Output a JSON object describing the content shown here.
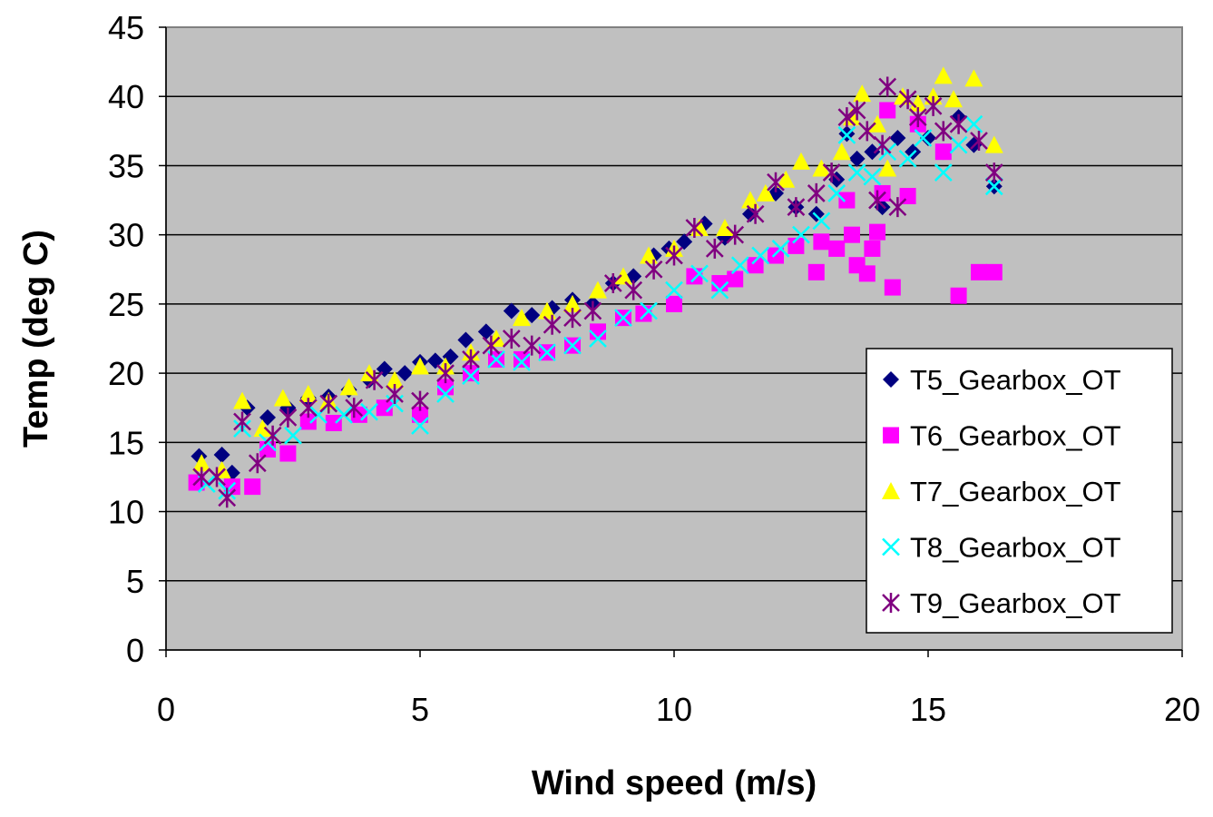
{
  "chart_data": {
    "type": "scatter",
    "title": "",
    "xlabel": "Wind speed (m/s)",
    "ylabel": "Temp (deg C)",
    "xlim": [
      0,
      20
    ],
    "ylim": [
      0,
      45
    ],
    "x_ticks": [
      0,
      5,
      10,
      15,
      20
    ],
    "y_ticks": [
      0,
      5,
      10,
      15,
      20,
      25,
      30,
      35,
      40,
      45
    ],
    "grid": "horizontal",
    "plot_background": "#C0C0C0",
    "legend_position": "right inside plot",
    "series": [
      {
        "name": "T5_Gearbox_OT",
        "color": "#000080",
        "marker": "diamond",
        "points": [
          [
            0.65,
            14.0
          ],
          [
            1.1,
            14.1
          ],
          [
            1.3,
            12.8
          ],
          [
            1.6,
            17.5
          ],
          [
            2.0,
            16.8
          ],
          [
            2.4,
            17.5
          ],
          [
            2.8,
            18.2
          ],
          [
            3.2,
            18.3
          ],
          [
            3.6,
            18.8
          ],
          [
            4.0,
            19.5
          ],
          [
            4.3,
            20.3
          ],
          [
            4.7,
            20.0
          ],
          [
            5.0,
            20.8
          ],
          [
            5.3,
            20.9
          ],
          [
            5.6,
            21.2
          ],
          [
            5.9,
            22.4
          ],
          [
            6.3,
            23.0
          ],
          [
            6.8,
            24.5
          ],
          [
            7.2,
            24.2
          ],
          [
            7.6,
            24.7
          ],
          [
            8.0,
            25.3
          ],
          [
            8.4,
            25.0
          ],
          [
            8.8,
            26.5
          ],
          [
            9.2,
            27.0
          ],
          [
            9.6,
            28.5
          ],
          [
            9.9,
            29.0
          ],
          [
            10.2,
            29.5
          ],
          [
            10.6,
            30.8
          ],
          [
            11.0,
            29.8
          ],
          [
            11.5,
            31.5
          ],
          [
            12.0,
            33.0
          ],
          [
            12.4,
            32.0
          ],
          [
            12.8,
            31.5
          ],
          [
            13.2,
            34.0
          ],
          [
            13.4,
            37.3
          ],
          [
            13.6,
            35.5
          ],
          [
            13.9,
            36.0
          ],
          [
            14.1,
            32.0
          ],
          [
            14.4,
            37.0
          ],
          [
            14.7,
            36.0
          ],
          [
            15.0,
            37.0
          ],
          [
            15.3,
            36.0
          ],
          [
            15.6,
            38.5
          ],
          [
            15.9,
            36.5
          ],
          [
            16.3,
            33.5
          ]
        ]
      },
      {
        "name": "T6_Gearbox_OT",
        "color": "#FF00FF",
        "marker": "square",
        "points": [
          [
            0.6,
            12.1
          ],
          [
            1.3,
            11.8
          ],
          [
            1.7,
            11.8
          ],
          [
            2.0,
            14.5
          ],
          [
            2.4,
            14.2
          ],
          [
            2.8,
            16.5
          ],
          [
            3.3,
            16.4
          ],
          [
            3.8,
            17.0
          ],
          [
            4.3,
            17.5
          ],
          [
            5.0,
            17.0
          ],
          [
            5.5,
            19.0
          ],
          [
            6.0,
            20.0
          ],
          [
            6.5,
            21.0
          ],
          [
            7.0,
            21.0
          ],
          [
            7.5,
            21.5
          ],
          [
            8.0,
            22.0
          ],
          [
            8.5,
            23.0
          ],
          [
            9.0,
            24.0
          ],
          [
            9.4,
            24.3
          ],
          [
            10.0,
            25.0
          ],
          [
            10.4,
            27.0
          ],
          [
            10.9,
            26.5
          ],
          [
            11.2,
            26.8
          ],
          [
            11.6,
            27.8
          ],
          [
            12.0,
            28.5
          ],
          [
            12.4,
            29.2
          ],
          [
            12.8,
            27.3
          ],
          [
            12.9,
            29.5
          ],
          [
            13.2,
            29.0
          ],
          [
            13.4,
            32.5
          ],
          [
            13.5,
            30.0
          ],
          [
            13.6,
            27.8
          ],
          [
            13.8,
            27.2
          ],
          [
            13.9,
            29.0
          ],
          [
            14.0,
            30.2
          ],
          [
            14.1,
            33.0
          ],
          [
            14.2,
            39.0
          ],
          [
            14.3,
            26.2
          ],
          [
            14.6,
            32.8
          ],
          [
            14.8,
            38.0
          ],
          [
            15.3,
            36.0
          ],
          [
            15.6,
            25.6
          ],
          [
            16.0,
            27.3
          ],
          [
            16.3,
            27.3
          ]
        ]
      },
      {
        "name": "T7_Gearbox_OT",
        "color": "#FFFF00",
        "marker": "triangle",
        "points": [
          [
            0.7,
            13.5
          ],
          [
            1.1,
            13.0
          ],
          [
            1.5,
            18.0
          ],
          [
            1.9,
            16.0
          ],
          [
            2.3,
            18.2
          ],
          [
            2.8,
            18.5
          ],
          [
            3.2,
            18.0
          ],
          [
            3.6,
            19.0
          ],
          [
            4.0,
            20.0
          ],
          [
            4.5,
            19.5
          ],
          [
            5.0,
            20.5
          ],
          [
            5.5,
            20.5
          ],
          [
            6.0,
            21.5
          ],
          [
            6.5,
            22.5
          ],
          [
            7.0,
            24.0
          ],
          [
            7.5,
            24.5
          ],
          [
            8.0,
            25.0
          ],
          [
            8.5,
            26.0
          ],
          [
            9.0,
            27.0
          ],
          [
            9.5,
            28.5
          ],
          [
            10.0,
            29.0
          ],
          [
            10.5,
            30.5
          ],
          [
            11.0,
            30.5
          ],
          [
            11.5,
            32.5
          ],
          [
            11.8,
            33.0
          ],
          [
            12.2,
            34.0
          ],
          [
            12.5,
            35.3
          ],
          [
            12.9,
            34.8
          ],
          [
            13.3,
            36.0
          ],
          [
            13.5,
            38.5
          ],
          [
            13.7,
            40.2
          ],
          [
            14.0,
            38.0
          ],
          [
            14.2,
            34.8
          ],
          [
            14.5,
            40.0
          ],
          [
            14.8,
            39.5
          ],
          [
            15.1,
            40.0
          ],
          [
            15.3,
            41.5
          ],
          [
            15.5,
            39.8
          ],
          [
            15.9,
            41.3
          ],
          [
            16.3,
            36.5
          ]
        ]
      },
      {
        "name": "T8_Gearbox_OT",
        "color": "#00FFFF",
        "marker": "x",
        "points": [
          [
            0.8,
            12.0
          ],
          [
            1.2,
            11.5
          ],
          [
            1.5,
            16.0
          ],
          [
            2.0,
            15.0
          ],
          [
            2.5,
            15.5
          ],
          [
            3.0,
            17.0
          ],
          [
            3.5,
            17.0
          ],
          [
            4.0,
            17.2
          ],
          [
            4.5,
            17.8
          ],
          [
            5.0,
            16.2
          ],
          [
            5.5,
            18.5
          ],
          [
            6.0,
            19.8
          ],
          [
            6.5,
            21.0
          ],
          [
            7.0,
            20.8
          ],
          [
            7.5,
            21.5
          ],
          [
            8.0,
            22.0
          ],
          [
            8.5,
            22.5
          ],
          [
            9.0,
            24.0
          ],
          [
            9.5,
            24.5
          ],
          [
            10.0,
            26.0
          ],
          [
            10.5,
            27.2
          ],
          [
            10.9,
            26.0
          ],
          [
            11.3,
            27.8
          ],
          [
            11.7,
            28.5
          ],
          [
            12.1,
            29.0
          ],
          [
            12.5,
            30.0
          ],
          [
            12.9,
            31.0
          ],
          [
            13.2,
            33.0
          ],
          [
            13.4,
            37.2
          ],
          [
            13.6,
            34.5
          ],
          [
            13.9,
            34.2
          ],
          [
            14.2,
            36.0
          ],
          [
            14.6,
            35.5
          ],
          [
            14.9,
            37.0
          ],
          [
            15.3,
            34.5
          ],
          [
            15.6,
            36.5
          ],
          [
            15.9,
            38.0
          ],
          [
            16.3,
            33.5
          ]
        ]
      },
      {
        "name": "T9_Gearbox_OT",
        "color": "#800080",
        "marker": "star",
        "points": [
          [
            0.7,
            12.5
          ],
          [
            1.0,
            12.5
          ],
          [
            1.2,
            11.0
          ],
          [
            1.5,
            16.5
          ],
          [
            1.8,
            13.5
          ],
          [
            2.1,
            15.5
          ],
          [
            2.4,
            16.8
          ],
          [
            2.8,
            17.5
          ],
          [
            3.2,
            17.8
          ],
          [
            3.7,
            17.5
          ],
          [
            4.1,
            19.5
          ],
          [
            4.5,
            18.5
          ],
          [
            5.0,
            18.0
          ],
          [
            5.5,
            20.0
          ],
          [
            6.0,
            21.0
          ],
          [
            6.4,
            22.0
          ],
          [
            6.8,
            22.5
          ],
          [
            7.2,
            22.0
          ],
          [
            7.6,
            23.5
          ],
          [
            8.0,
            24.0
          ],
          [
            8.4,
            24.5
          ],
          [
            8.8,
            26.5
          ],
          [
            9.2,
            26.0
          ],
          [
            9.6,
            27.5
          ],
          [
            10.0,
            28.5
          ],
          [
            10.4,
            30.5
          ],
          [
            10.8,
            29.0
          ],
          [
            11.2,
            30.0
          ],
          [
            11.6,
            31.5
          ],
          [
            12.0,
            33.8
          ],
          [
            12.4,
            32.0
          ],
          [
            12.8,
            33.0
          ],
          [
            13.1,
            34.5
          ],
          [
            13.4,
            38.5
          ],
          [
            13.6,
            39.0
          ],
          [
            13.8,
            37.5
          ],
          [
            14.0,
            32.5
          ],
          [
            14.1,
            36.5
          ],
          [
            14.2,
            40.7
          ],
          [
            14.4,
            32.0
          ],
          [
            14.6,
            39.8
          ],
          [
            14.8,
            38.5
          ],
          [
            15.1,
            39.3
          ],
          [
            15.3,
            37.5
          ],
          [
            15.6,
            38.0
          ],
          [
            16.0,
            36.8
          ],
          [
            16.3,
            34.5
          ]
        ]
      }
    ]
  }
}
